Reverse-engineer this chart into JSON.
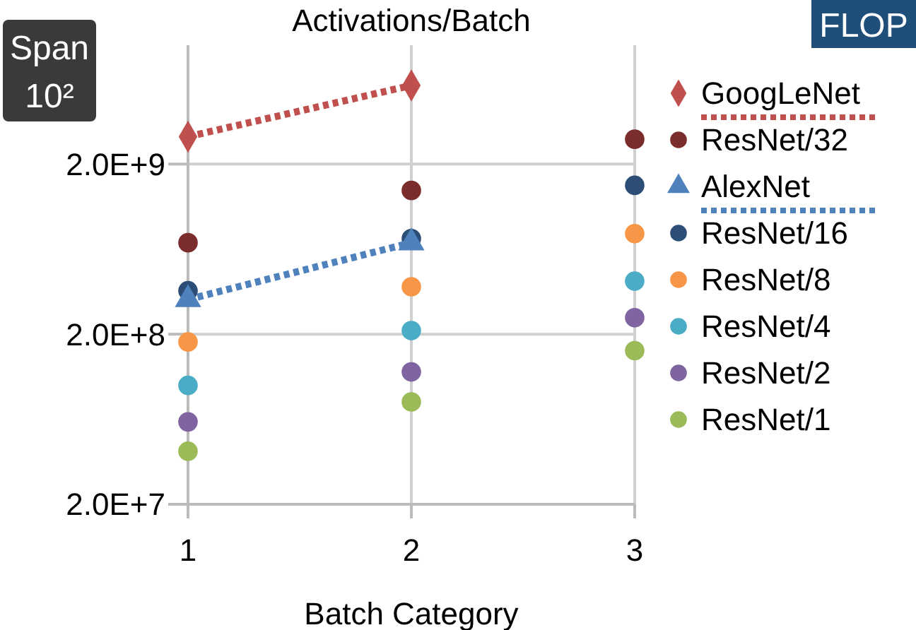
{
  "chart_data": {
    "type": "scatter",
    "title": "Activations/Batch",
    "xlabel": "Batch Category",
    "x": [
      1,
      2,
      3
    ],
    "series": [
      {
        "name": "GoogLeNet",
        "type": "line",
        "color": "#c0504d",
        "marker": "diamond",
        "line_style": "dotted",
        "values": [
          2900000000.0,
          5800000000.0,
          null
        ]
      },
      {
        "name": "ResNet/32",
        "color": "#7b2c2c",
        "values": [
          690000000.0,
          1400000000.0,
          2800000000.0
        ]
      },
      {
        "name": "AlexNet",
        "type": "line",
        "color": "#4f81bd",
        "marker": "triangle",
        "line_style": "dotted",
        "values": [
          320000000.0,
          690000000.0,
          null
        ]
      },
      {
        "name": "ResNet/16",
        "color": "#2c4d75",
        "values": [
          360000000.0,
          730000000.0,
          1500000000.0
        ]
      },
      {
        "name": "ResNet/8",
        "color": "#f79646",
        "values": [
          180000000.0,
          380000000.0,
          780000000.0
        ]
      },
      {
        "name": "ResNet/4",
        "color": "#4bacc6",
        "values": [
          100000000.0,
          210000000.0,
          410000000.0
        ]
      },
      {
        "name": "ResNet/2",
        "color": "#8064a2",
        "values": [
          61000000.0,
          120000000.0,
          250000000.0
        ]
      },
      {
        "name": "ResNet/1",
        "color": "#9bbb59",
        "values": [
          41000000.0,
          80000000.0,
          160000000.0
        ]
      }
    ],
    "marker": "circle",
    "log": true,
    "ylim": [
      20000000.0,
      10000000000.0
    ],
    "yticks": [
      {
        "value": 20000000.0,
        "label": "2.0E+7"
      },
      {
        "value": 200000000.0,
        "label": "2.0E+8"
      },
      {
        "value": 2000000000.0,
        "label": "2.0E+9"
      }
    ],
    "xlim": [
      1,
      3
    ],
    "xticks": [
      1,
      2,
      3
    ],
    "grid": true,
    "legend": "right",
    "annotations": [
      "Span 10²",
      "FLOP"
    ]
  }
}
